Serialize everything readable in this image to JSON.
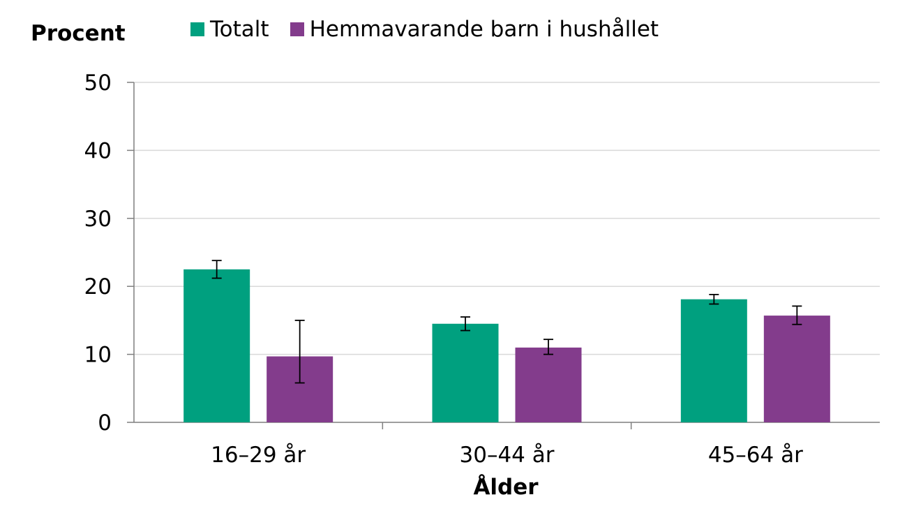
{
  "chart_data": {
    "type": "bar",
    "ylabel": "Procent",
    "xlabel": "Ålder",
    "categories": [
      "16–29 år",
      "30–44 år",
      "45–64 år"
    ],
    "ylim": [
      0,
      50
    ],
    "yticks": [
      0,
      10,
      20,
      30,
      40,
      50
    ],
    "grid": true,
    "legend_position": "top",
    "series": [
      {
        "name": "Totalt",
        "color": "#00a07f",
        "values": [
          22.5,
          14.5,
          18.1
        ],
        "error_low": [
          21.2,
          13.5,
          17.4
        ],
        "error_high": [
          23.8,
          15.5,
          18.8
        ]
      },
      {
        "name": "Hemmavarande barn i hushållet",
        "color": "#833c8c",
        "values": [
          9.7,
          11.0,
          15.7
        ],
        "error_low": [
          5.8,
          10.0,
          14.4
        ],
        "error_high": [
          15.0,
          12.2,
          17.1
        ]
      }
    ]
  }
}
